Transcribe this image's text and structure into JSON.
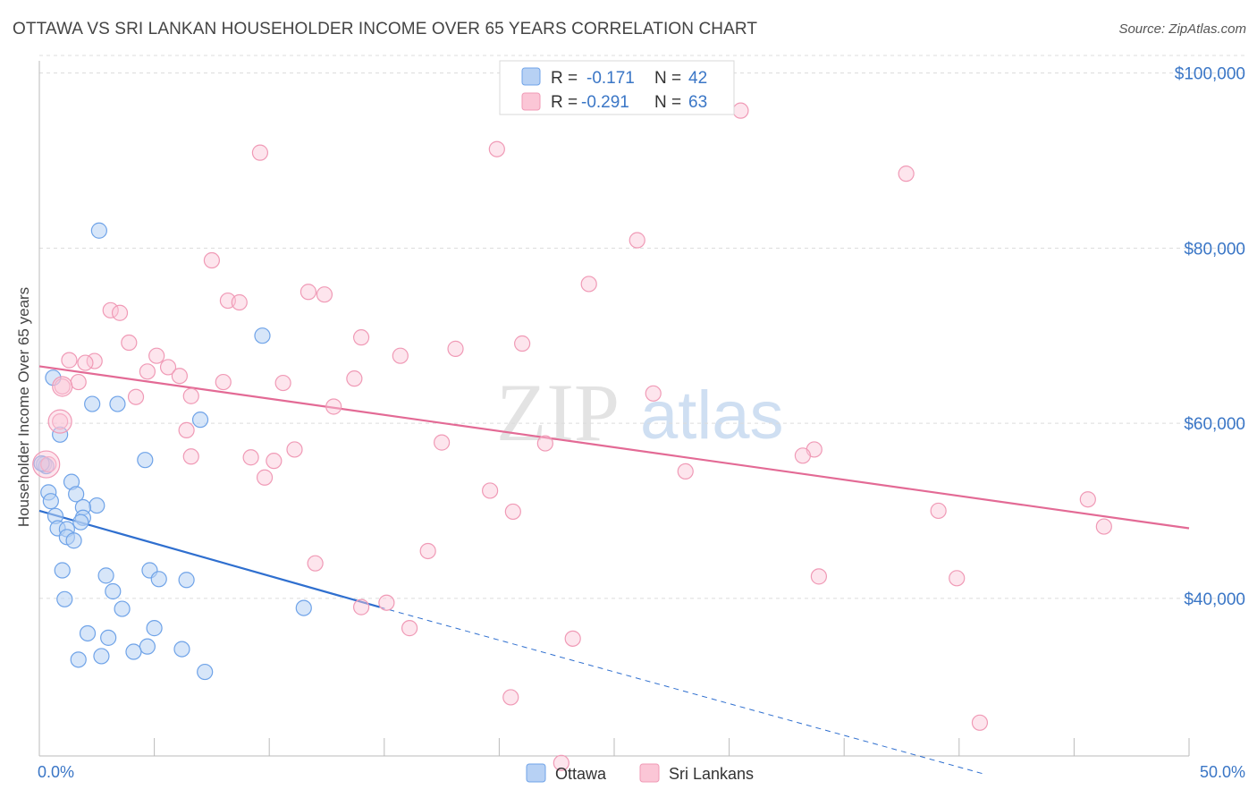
{
  "title": "OTTAWA VS SRI LANKAN HOUSEHOLDER INCOME OVER 65 YEARS CORRELATION CHART",
  "source": "Source: ZipAtlas.com",
  "watermark": {
    "zip": "ZIP",
    "atlas": "atlas"
  },
  "colors": {
    "ottawa": "#6fa3e8",
    "ottawa_line": "#2f6fcf",
    "srilankan": "#f09ab6",
    "srilankan_line": "#e36a95",
    "axis_label": "#3a76c6"
  },
  "legend": {
    "rows": [
      {
        "r_label": "R =",
        "r_value": "-0.171",
        "n_label": "N =",
        "n_value": "42"
      },
      {
        "r_label": "R =",
        "r_value": "-0.291",
        "n_label": "N =",
        "n_value": "63"
      }
    ]
  },
  "bottom_legend": {
    "ottawa": "Ottawa",
    "srilankan": "Sri Lankans"
  },
  "chart_data": {
    "type": "scatter",
    "title": "OTTAWA VS SRI LANKAN HOUSEHOLDER INCOME OVER 65 YEARS CORRELATION CHART",
    "xlabel": "",
    "ylabel": "Householder Income Over 65 years",
    "xlim": [
      0,
      50
    ],
    "ylim": [
      22000,
      102000
    ],
    "x_tick_labels": [
      "0.0%",
      "50.0%"
    ],
    "y_ticks": [
      40000,
      60000,
      80000,
      100000
    ],
    "y_tick_labels": [
      "$40,000",
      "$60,000",
      "$80,000",
      "$100,000"
    ],
    "grid": true,
    "legend_position": "top-center",
    "series": [
      {
        "name": "Ottawa",
        "trend": {
          "x": [
            0.0,
            14.8
          ],
          "y": [
            50000,
            39000
          ],
          "dashed_extension_to": [
            41.0,
            20000
          ]
        },
        "points": [
          [
            2.6,
            82000
          ],
          [
            9.7,
            70000
          ],
          [
            0.6,
            65200
          ],
          [
            2.3,
            62200
          ],
          [
            3.4,
            62200
          ],
          [
            7.0,
            60400
          ],
          [
            0.9,
            58700
          ],
          [
            4.6,
            55800
          ],
          [
            0.2,
            55300
          ],
          [
            0.3,
            55100
          ],
          [
            1.4,
            53300
          ],
          [
            0.4,
            52100
          ],
          [
            1.6,
            51900
          ],
          [
            0.5,
            51100
          ],
          [
            2.5,
            50600
          ],
          [
            1.9,
            50400
          ],
          [
            0.7,
            49400
          ],
          [
            1.9,
            49200
          ],
          [
            1.8,
            48700
          ],
          [
            0.8,
            48000
          ],
          [
            1.2,
            47900
          ],
          [
            1.2,
            47000
          ],
          [
            1.5,
            46600
          ],
          [
            1.0,
            43200
          ],
          [
            4.8,
            43200
          ],
          [
            2.9,
            42600
          ],
          [
            6.4,
            42100
          ],
          [
            5.2,
            42200
          ],
          [
            3.2,
            40800
          ],
          [
            1.1,
            39900
          ],
          [
            3.6,
            38800
          ],
          [
            11.5,
            38900
          ],
          [
            5.0,
            36600
          ],
          [
            2.1,
            36000
          ],
          [
            3.0,
            35500
          ],
          [
            4.7,
            34500
          ],
          [
            6.2,
            34200
          ],
          [
            4.1,
            33900
          ],
          [
            2.7,
            33400
          ],
          [
            1.7,
            33000
          ],
          [
            7.2,
            31600
          ],
          [
            0.1,
            55400
          ]
        ]
      },
      {
        "name": "Sri Lankans",
        "trend": {
          "x": [
            0.0,
            50.0
          ],
          "y": [
            66500,
            48000
          ]
        },
        "points": [
          [
            30.5,
            95700
          ],
          [
            19.9,
            91300
          ],
          [
            9.6,
            90900
          ],
          [
            37.7,
            88500
          ],
          [
            26.0,
            80900
          ],
          [
            7.5,
            78600
          ],
          [
            23.9,
            75900
          ],
          [
            11.7,
            75000
          ],
          [
            12.4,
            74700
          ],
          [
            8.2,
            74000
          ],
          [
            8.7,
            73800
          ],
          [
            3.1,
            72900
          ],
          [
            3.5,
            72600
          ],
          [
            14.0,
            69800
          ],
          [
            21.0,
            69100
          ],
          [
            3.9,
            69200
          ],
          [
            18.1,
            68500
          ],
          [
            5.1,
            67700
          ],
          [
            15.7,
            67700
          ],
          [
            2.4,
            67100
          ],
          [
            2.0,
            66900
          ],
          [
            1.3,
            67200
          ],
          [
            5.6,
            66400
          ],
          [
            4.7,
            65900
          ],
          [
            6.1,
            65400
          ],
          [
            13.7,
            65100
          ],
          [
            1.7,
            64700
          ],
          [
            8.0,
            64700
          ],
          [
            10.6,
            64600
          ],
          [
            1.0,
            64200
          ],
          [
            4.2,
            63000
          ],
          [
            6.6,
            63100
          ],
          [
            26.7,
            63400
          ],
          [
            12.8,
            61900
          ],
          [
            6.4,
            59200
          ],
          [
            17.5,
            57800
          ],
          [
            22.0,
            57700
          ],
          [
            11.1,
            57000
          ],
          [
            33.7,
            57000
          ],
          [
            6.6,
            56200
          ],
          [
            9.2,
            56100
          ],
          [
            33.2,
            56300
          ],
          [
            10.2,
            55700
          ],
          [
            28.1,
            54500
          ],
          [
            9.8,
            53800
          ],
          [
            19.6,
            52300
          ],
          [
            0.9,
            60200
          ],
          [
            0.4,
            55300
          ],
          [
            45.6,
            51300
          ],
          [
            39.1,
            50000
          ],
          [
            20.6,
            49900
          ],
          [
            46.3,
            48200
          ],
          [
            16.9,
            45400
          ],
          [
            12.0,
            44000
          ],
          [
            33.9,
            42500
          ],
          [
            39.9,
            42300
          ],
          [
            15.1,
            39500
          ],
          [
            14.0,
            39000
          ],
          [
            16.1,
            36600
          ],
          [
            23.2,
            35400
          ],
          [
            20.5,
            28700
          ],
          [
            40.9,
            25800
          ],
          [
            22.7,
            21200
          ]
        ]
      }
    ]
  }
}
